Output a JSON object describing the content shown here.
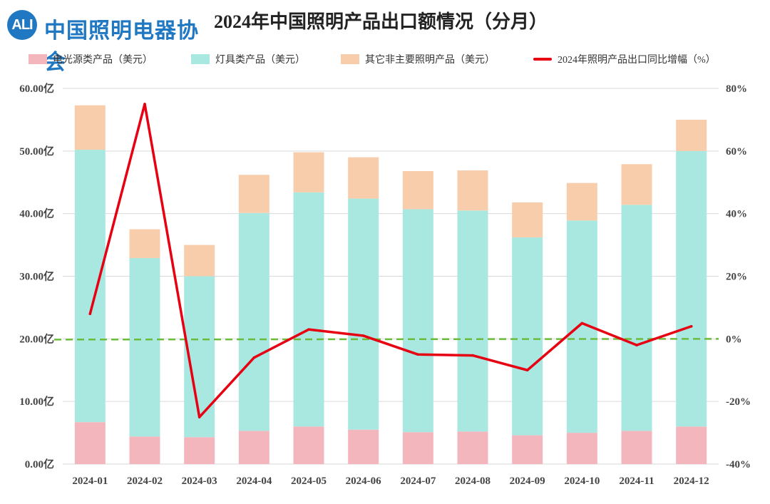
{
  "logo": {
    "badge": "ALI",
    "text": "中国照明电器协会"
  },
  "chart_data": {
    "type": "bar",
    "title": "2024年中国照明产品出口额情况（分月）",
    "categories": [
      "2024-01",
      "2024-02",
      "2024-03",
      "2024-04",
      "2024-05",
      "2024-06",
      "2024-07",
      "2024-08",
      "2024-09",
      "2024-10",
      "2024-11",
      "2024-12"
    ],
    "series": [
      {
        "name": "电光源类产品（美元）",
        "color": "#f4b6bd",
        "axis": "left",
        "values": [
          6.7,
          4.4,
          4.3,
          5.3,
          6.0,
          5.5,
          5.1,
          5.2,
          4.6,
          5.0,
          5.3,
          6.0
        ]
      },
      {
        "name": "灯具类产品（美元）",
        "color": "#a9e8e1",
        "axis": "left",
        "values": [
          43.5,
          28.5,
          25.7,
          34.8,
          37.4,
          36.9,
          35.6,
          35.3,
          31.6,
          33.9,
          36.1,
          44.0
        ]
      },
      {
        "name": "其它非主要照明产品（美元）",
        "color": "#f8cdac",
        "axis": "left",
        "values": [
          7.1,
          4.6,
          5.0,
          6.1,
          6.4,
          6.6,
          6.1,
          6.4,
          5.6,
          6.0,
          6.5,
          5.0
        ]
      },
      {
        "name": "2024年照明产品出口同比增幅（%）",
        "color": "#e60012",
        "type": "line",
        "axis": "right",
        "values": [
          8,
          75,
          -25,
          -6,
          3,
          1,
          -5,
          -5.3,
          -10,
          5,
          -2,
          4
        ]
      }
    ],
    "stacked": true,
    "left_axis": {
      "min": 0,
      "max": 60,
      "ticks": [
        "0.00亿",
        "10.00亿",
        "20.00亿",
        "30.00亿",
        "40.00亿",
        "50.00亿",
        "60.00亿"
      ]
    },
    "right_axis": {
      "min": -40,
      "max": 80,
      "ticks": [
        "-40%",
        "-20%",
        "0%",
        "20%",
        "40%",
        "60%",
        "80%"
      ]
    },
    "zero_reference_line": {
      "color": "#6cbb3c",
      "style": "dashed"
    },
    "grid": true,
    "legend_position": "top"
  }
}
